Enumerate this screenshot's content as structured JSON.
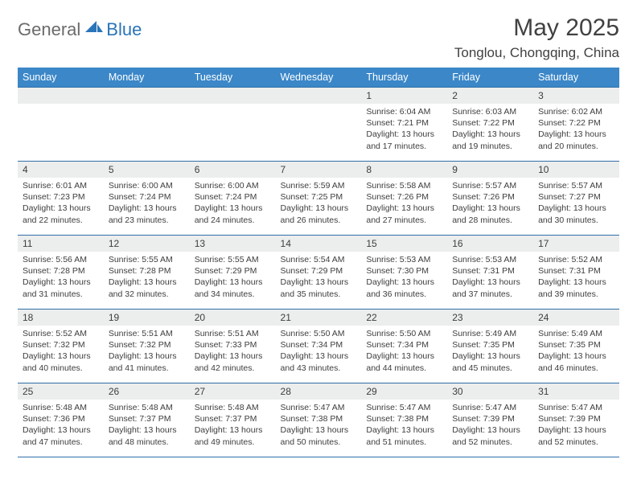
{
  "brand": {
    "part1": "General",
    "part2": "Blue"
  },
  "title": "May 2025",
  "location": "Tonglou, Chongqing, China",
  "colors": {
    "header_bg": "#3b87c8",
    "border": "#2f6fa8",
    "daynum_bg": "#eceded",
    "text": "#3d3d3d",
    "logo_gray": "#6b6b6b",
    "logo_blue": "#2a74b8"
  },
  "day_headers": [
    "Sunday",
    "Monday",
    "Tuesday",
    "Wednesday",
    "Thursday",
    "Friday",
    "Saturday"
  ],
  "weeks": [
    [
      null,
      null,
      null,
      null,
      {
        "n": "1",
        "sr": "6:04 AM",
        "ss": "7:21 PM",
        "dl": "13 hours and 17 minutes."
      },
      {
        "n": "2",
        "sr": "6:03 AM",
        "ss": "7:22 PM",
        "dl": "13 hours and 19 minutes."
      },
      {
        "n": "3",
        "sr": "6:02 AM",
        "ss": "7:22 PM",
        "dl": "13 hours and 20 minutes."
      }
    ],
    [
      {
        "n": "4",
        "sr": "6:01 AM",
        "ss": "7:23 PM",
        "dl": "13 hours and 22 minutes."
      },
      {
        "n": "5",
        "sr": "6:00 AM",
        "ss": "7:24 PM",
        "dl": "13 hours and 23 minutes."
      },
      {
        "n": "6",
        "sr": "6:00 AM",
        "ss": "7:24 PM",
        "dl": "13 hours and 24 minutes."
      },
      {
        "n": "7",
        "sr": "5:59 AM",
        "ss": "7:25 PM",
        "dl": "13 hours and 26 minutes."
      },
      {
        "n": "8",
        "sr": "5:58 AM",
        "ss": "7:26 PM",
        "dl": "13 hours and 27 minutes."
      },
      {
        "n": "9",
        "sr": "5:57 AM",
        "ss": "7:26 PM",
        "dl": "13 hours and 28 minutes."
      },
      {
        "n": "10",
        "sr": "5:57 AM",
        "ss": "7:27 PM",
        "dl": "13 hours and 30 minutes."
      }
    ],
    [
      {
        "n": "11",
        "sr": "5:56 AM",
        "ss": "7:28 PM",
        "dl": "13 hours and 31 minutes."
      },
      {
        "n": "12",
        "sr": "5:55 AM",
        "ss": "7:28 PM",
        "dl": "13 hours and 32 minutes."
      },
      {
        "n": "13",
        "sr": "5:55 AM",
        "ss": "7:29 PM",
        "dl": "13 hours and 34 minutes."
      },
      {
        "n": "14",
        "sr": "5:54 AM",
        "ss": "7:29 PM",
        "dl": "13 hours and 35 minutes."
      },
      {
        "n": "15",
        "sr": "5:53 AM",
        "ss": "7:30 PM",
        "dl": "13 hours and 36 minutes."
      },
      {
        "n": "16",
        "sr": "5:53 AM",
        "ss": "7:31 PM",
        "dl": "13 hours and 37 minutes."
      },
      {
        "n": "17",
        "sr": "5:52 AM",
        "ss": "7:31 PM",
        "dl": "13 hours and 39 minutes."
      }
    ],
    [
      {
        "n": "18",
        "sr": "5:52 AM",
        "ss": "7:32 PM",
        "dl": "13 hours and 40 minutes."
      },
      {
        "n": "19",
        "sr": "5:51 AM",
        "ss": "7:32 PM",
        "dl": "13 hours and 41 minutes."
      },
      {
        "n": "20",
        "sr": "5:51 AM",
        "ss": "7:33 PM",
        "dl": "13 hours and 42 minutes."
      },
      {
        "n": "21",
        "sr": "5:50 AM",
        "ss": "7:34 PM",
        "dl": "13 hours and 43 minutes."
      },
      {
        "n": "22",
        "sr": "5:50 AM",
        "ss": "7:34 PM",
        "dl": "13 hours and 44 minutes."
      },
      {
        "n": "23",
        "sr": "5:49 AM",
        "ss": "7:35 PM",
        "dl": "13 hours and 45 minutes."
      },
      {
        "n": "24",
        "sr": "5:49 AM",
        "ss": "7:35 PM",
        "dl": "13 hours and 46 minutes."
      }
    ],
    [
      {
        "n": "25",
        "sr": "5:48 AM",
        "ss": "7:36 PM",
        "dl": "13 hours and 47 minutes."
      },
      {
        "n": "26",
        "sr": "5:48 AM",
        "ss": "7:37 PM",
        "dl": "13 hours and 48 minutes."
      },
      {
        "n": "27",
        "sr": "5:48 AM",
        "ss": "7:37 PM",
        "dl": "13 hours and 49 minutes."
      },
      {
        "n": "28",
        "sr": "5:47 AM",
        "ss": "7:38 PM",
        "dl": "13 hours and 50 minutes."
      },
      {
        "n": "29",
        "sr": "5:47 AM",
        "ss": "7:38 PM",
        "dl": "13 hours and 51 minutes."
      },
      {
        "n": "30",
        "sr": "5:47 AM",
        "ss": "7:39 PM",
        "dl": "13 hours and 52 minutes."
      },
      {
        "n": "31",
        "sr": "5:47 AM",
        "ss": "7:39 PM",
        "dl": "13 hours and 52 minutes."
      }
    ]
  ],
  "labels": {
    "sunrise": "Sunrise:",
    "sunset": "Sunset:",
    "daylight": "Daylight:"
  }
}
